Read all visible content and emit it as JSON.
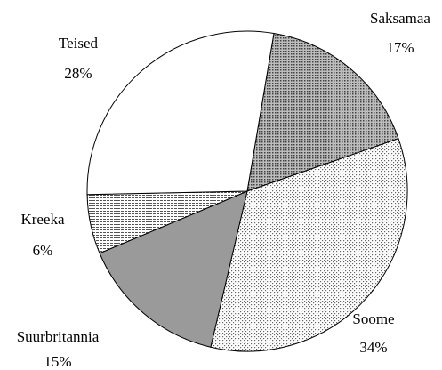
{
  "chart_data": {
    "type": "pie",
    "categories": [
      "Saksamaa",
      "Soome",
      "Suurbritannia",
      "Kreeka",
      "Teised"
    ],
    "values": [
      17,
      34,
      15,
      6,
      28
    ],
    "value_labels": [
      "17%",
      "34%",
      "15%",
      "6%",
      "28%"
    ],
    "colors": [
      "#777777",
      "#e6e6e6",
      "#9a9a9a",
      "#ffffff",
      "#ffffff"
    ]
  }
}
